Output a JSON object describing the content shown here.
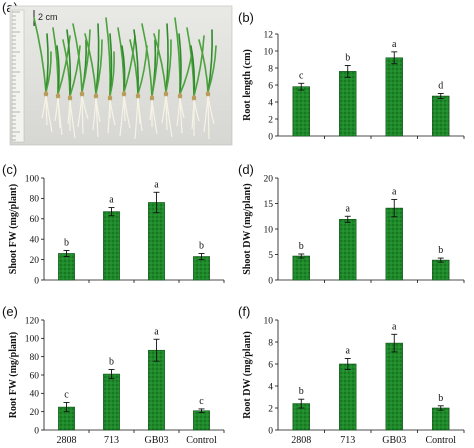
{
  "photo": {
    "panel_label": "(a)",
    "scale_label": "2 cm"
  },
  "chart_data": [
    {
      "panel_label": "(b)",
      "type": "bar",
      "categories": [
        "2808",
        "713",
        "GB03",
        "Control"
      ],
      "values": [
        5.8,
        7.6,
        9.2,
        4.7
      ],
      "errors": [
        0.4,
        0.7,
        0.7,
        0.3
      ],
      "letters": [
        "c",
        "b",
        "a",
        "d"
      ],
      "ylabel": "Root length (cm)",
      "ylim": [
        0,
        12
      ],
      "yticks": [
        0,
        2,
        4,
        6,
        8,
        10,
        12
      ],
      "show_categories": false,
      "bar_color": "#1f8a2a"
    },
    {
      "panel_label": "(c)",
      "type": "bar",
      "categories": [
        "2808",
        "713",
        "GB03",
        "Control"
      ],
      "values": [
        26,
        67,
        76,
        23
      ],
      "errors": [
        3,
        4,
        10,
        3
      ],
      "letters": [
        "b",
        "a",
        "a",
        "b"
      ],
      "ylabel": "Shoot FW (mg/plant)",
      "ylim": [
        0,
        100
      ],
      "yticks": [
        0,
        20,
        40,
        60,
        80,
        100
      ],
      "show_categories": false,
      "bar_color": "#1f8a2a"
    },
    {
      "panel_label": "(d)",
      "type": "bar",
      "categories": [
        "2808",
        "713",
        "GB03",
        "Control"
      ],
      "values": [
        4.7,
        11.9,
        14.1,
        3.9
      ],
      "errors": [
        0.4,
        0.6,
        1.7,
        0.4
      ],
      "letters": [
        "b",
        "a",
        "a",
        "b"
      ],
      "ylabel": "Shoot DW (mg/plant)",
      "ylim": [
        0,
        20
      ],
      "yticks": [
        0,
        5,
        10,
        15,
        20
      ],
      "show_categories": false,
      "bar_color": "#1f8a2a"
    },
    {
      "panel_label": "(e)",
      "type": "bar",
      "categories": [
        "2808",
        "713",
        "GB03",
        "Control"
      ],
      "values": [
        25,
        61,
        87,
        21
      ],
      "errors": [
        5,
        5,
        12,
        2
      ],
      "letters": [
        "c",
        "b",
        "a",
        "c"
      ],
      "ylabel": "Root FW (mg/plant)",
      "ylim": [
        0,
        120
      ],
      "yticks": [
        0,
        20,
        40,
        60,
        80,
        100,
        120
      ],
      "show_categories": true,
      "bar_color": "#1f8a2a"
    },
    {
      "panel_label": "(f)",
      "type": "bar",
      "categories": [
        "2808",
        "713",
        "GB03",
        "Control"
      ],
      "values": [
        2.4,
        6.0,
        7.9,
        2.0
      ],
      "errors": [
        0.4,
        0.5,
        0.8,
        0.2
      ],
      "letters": [
        "b",
        "a",
        "a",
        "b"
      ],
      "ylabel": "Root DW (mg/plant)",
      "ylim": [
        0,
        10
      ],
      "yticks": [
        0,
        2,
        4,
        6,
        8,
        10
      ],
      "show_categories": true,
      "bar_color": "#1f8a2a"
    }
  ]
}
